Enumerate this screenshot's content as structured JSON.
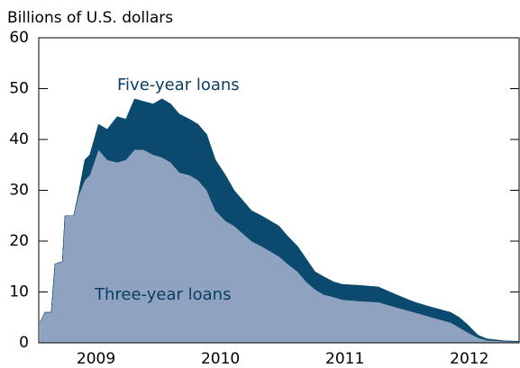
{
  "chart_data": {
    "type": "stacked_area",
    "y_label": "Billions of U.S. dollars",
    "annotations": [
      "Five-year loans",
      "Three-year loans"
    ],
    "x": [
      2009.05,
      2009.09,
      2009.14,
      2009.17,
      2009.23,
      2009.25,
      2009.32,
      2009.36,
      2009.41,
      2009.45,
      2009.52,
      2009.59,
      2009.67,
      2009.74,
      2009.81,
      2009.88,
      2009.96,
      2010.03,
      2010.1,
      2010.17,
      2010.25,
      2010.32,
      2010.39,
      2010.46,
      2010.54,
      2010.61,
      2010.68,
      2010.75,
      2010.83,
      2010.9,
      2010.97,
      2011.04,
      2011.12,
      2011.19,
      2011.26,
      2011.33,
      2011.41,
      2011.48,
      2011.62,
      2011.77,
      2011.91,
      2012.06,
      2012.2,
      2012.35,
      2012.42,
      2012.49,
      2012.57,
      2012.64,
      2012.78,
      2012.9
    ],
    "series": [
      {
        "name": "Three-year loans",
        "color": "#8fa3c0",
        "values": [
          4,
          6,
          6,
          15.5,
          16,
          25,
          25,
          29,
          32,
          33,
          38,
          36,
          35.5,
          36,
          38,
          38,
          37,
          36.5,
          35.5,
          33.5,
          33,
          32,
          30,
          26,
          24,
          23,
          21.5,
          20,
          19,
          18,
          17,
          15.5,
          14,
          12,
          10.5,
          9.5,
          9,
          8.5,
          8.2,
          8,
          7,
          6,
          5,
          4,
          3,
          2,
          1,
          0.5,
          0.3,
          0.2
        ]
      },
      {
        "name": "Five-year loans",
        "color": "#0b4a6e",
        "values": [
          0,
          0,
          0,
          0,
          0,
          0,
          0,
          0.5,
          4,
          4,
          5,
          6,
          9,
          8,
          10,
          9.5,
          10,
          11.5,
          11.5,
          11.5,
          11,
          11,
          11,
          10,
          9,
          7,
          6.5,
          6,
          6,
          6,
          6,
          5.5,
          5,
          4.5,
          3.5,
          3.5,
          3,
          3,
          3.1,
          3,
          2.5,
          2,
          2,
          2,
          2,
          1.5,
          0.5,
          0.3,
          0.1,
          0.1
        ]
      }
    ],
    "xlim": [
      2009.04,
      2012.9
    ],
    "xticks": [
      {
        "value": 2009.5,
        "label": "2009"
      },
      {
        "value": 2010.5,
        "label": "2010"
      },
      {
        "value": 2011.5,
        "label": "2011"
      },
      {
        "value": 2012.5,
        "label": "2012"
      }
    ],
    "ylim": [
      0,
      60
    ],
    "yticks": [
      0,
      10,
      20,
      30,
      40,
      50,
      60
    ]
  }
}
